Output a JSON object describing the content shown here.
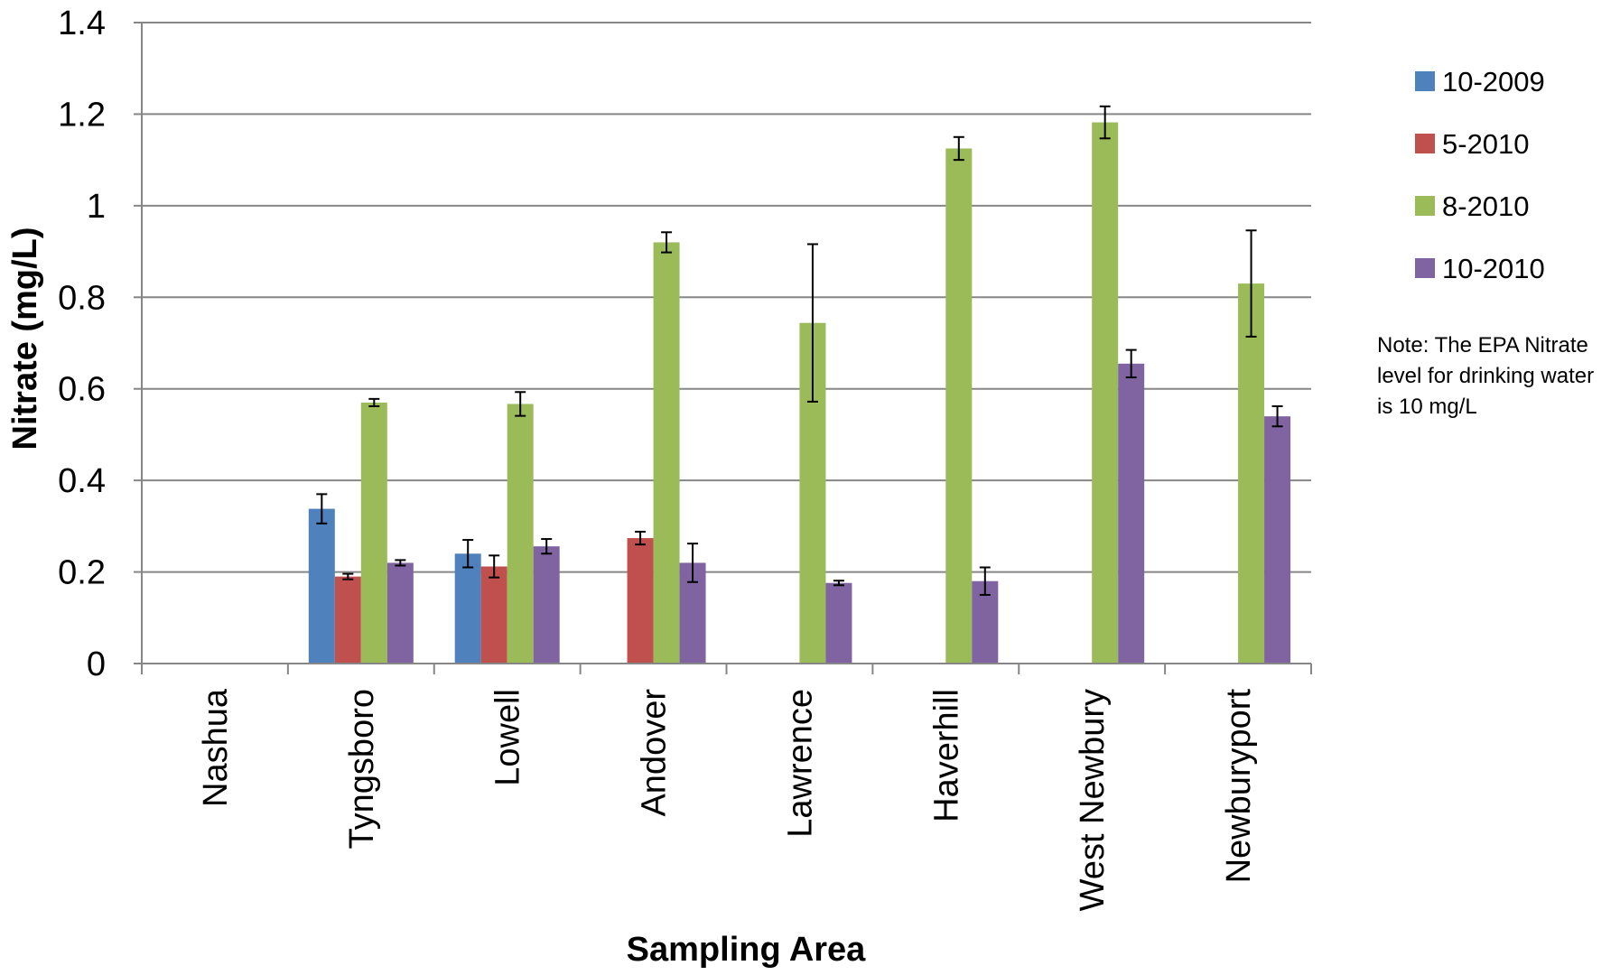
{
  "chart_data": {
    "type": "bar",
    "categories": [
      "Nashua",
      "Tyngsboro",
      "Lowell",
      "Andover",
      "Lawrence",
      "Haverhill",
      "West Newbury",
      "Newburyport"
    ],
    "series": [
      {
        "name": "10-2009",
        "color": "#4F81BD",
        "values": [
          null,
          0.338,
          0.24,
          null,
          null,
          null,
          null,
          null
        ],
        "errors": [
          null,
          0.032,
          0.03,
          null,
          null,
          null,
          null,
          null
        ]
      },
      {
        "name": "5-2010",
        "color": "#C0504D",
        "values": [
          null,
          0.19,
          0.212,
          0.274,
          null,
          null,
          null,
          null
        ],
        "errors": [
          null,
          0.006,
          0.024,
          0.014,
          null,
          null,
          null,
          null
        ]
      },
      {
        "name": "8-2010",
        "color": "#9BBB59",
        "values": [
          null,
          0.57,
          0.567,
          0.92,
          0.744,
          1.125,
          1.182,
          0.83
        ],
        "errors": [
          null,
          0.008,
          0.026,
          0.022,
          0.172,
          0.025,
          0.035,
          0.116
        ]
      },
      {
        "name": "10-2010",
        "color": "#8064A2",
        "values": [
          null,
          0.22,
          0.256,
          0.22,
          0.176,
          0.18,
          0.655,
          0.54
        ],
        "errors": [
          null,
          0.006,
          0.016,
          0.042,
          0.005,
          0.03,
          0.03,
          0.022
        ]
      }
    ],
    "xlabel": "Sampling Area",
    "ylabel": "Nitrate (mg/L)",
    "ylim": [
      0,
      1.4
    ],
    "yticks": [
      0,
      0.2,
      0.4,
      0.6,
      0.8,
      1,
      1.2,
      1.4
    ],
    "grid": true,
    "legend": "right",
    "annotation": [
      "Note: The EPA Nitrate",
      "level for drinking water",
      "is 10 mg/L"
    ]
  }
}
